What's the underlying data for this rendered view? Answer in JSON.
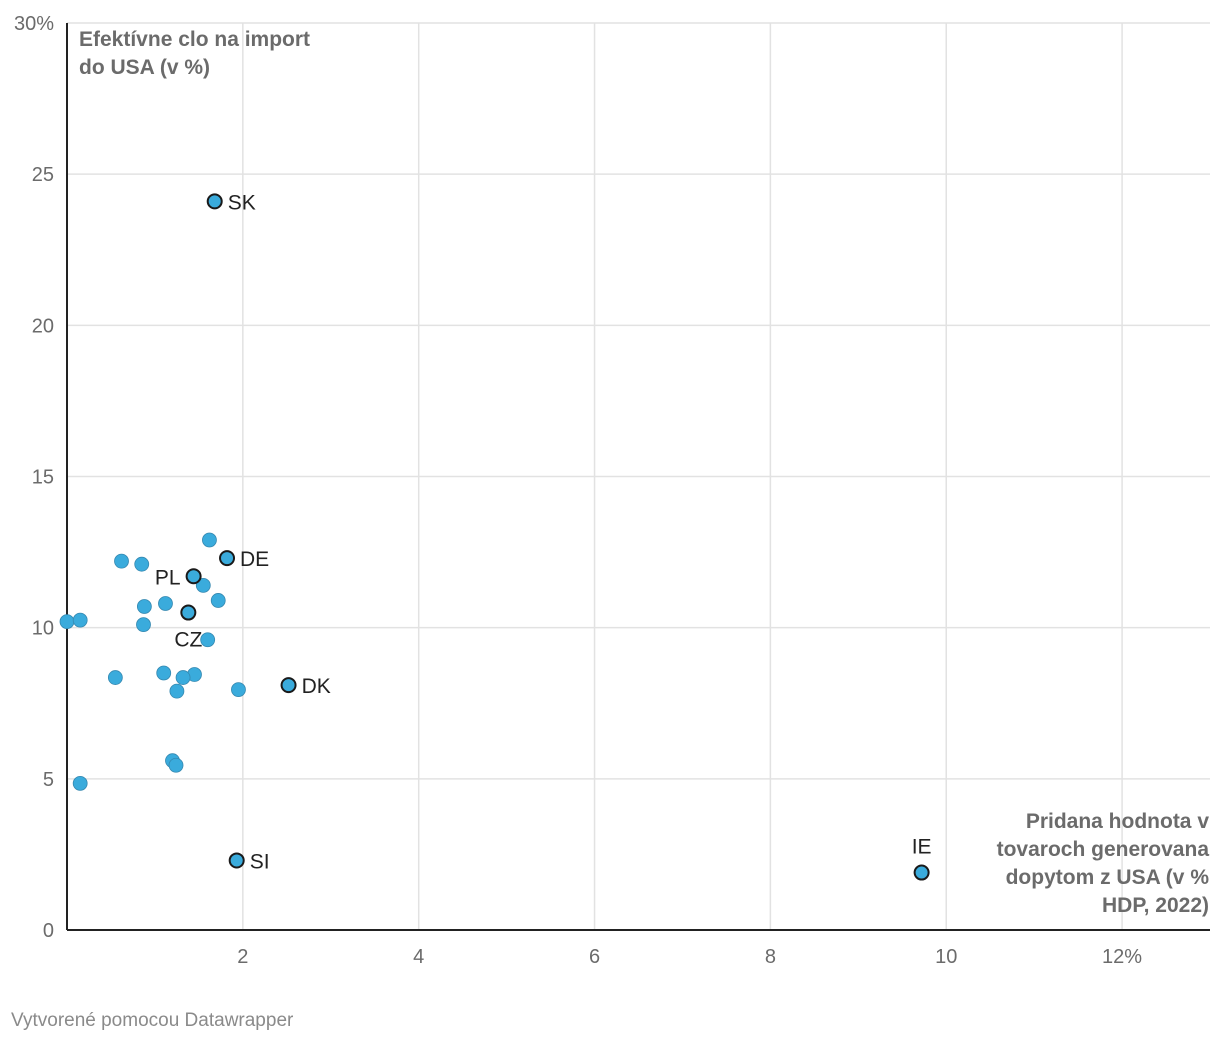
{
  "chart_data": {
    "type": "scatter",
    "ylabel": "Efektívne clo na import do USA (v %)",
    "xlabel": "Pridana hodnota v tovaroch generovana dopytom z USA (v % HDP, 2022)",
    "xlim": [
      0,
      13
    ],
    "ylim": [
      0,
      30
    ],
    "x_ticks": [
      {
        "value": 2,
        "label": "2"
      },
      {
        "value": 4,
        "label": "4"
      },
      {
        "value": 6,
        "label": "6"
      },
      {
        "value": 8,
        "label": "8"
      },
      {
        "value": 10,
        "label": "10"
      },
      {
        "value": 12,
        "label": "12%"
      }
    ],
    "y_ticks": [
      {
        "value": 0,
        "label": "0"
      },
      {
        "value": 5,
        "label": "5"
      },
      {
        "value": 10,
        "label": "10"
      },
      {
        "value": 15,
        "label": "15"
      },
      {
        "value": 20,
        "label": "20"
      },
      {
        "value": 25,
        "label": "25"
      },
      {
        "value": 30,
        "label": "30%"
      }
    ],
    "points": [
      {
        "x": 1.68,
        "y": 24.1,
        "label": "SK",
        "highlight": true,
        "label_pos": "right"
      },
      {
        "x": 1.82,
        "y": 12.3,
        "label": "DE",
        "highlight": true,
        "label_pos": "right"
      },
      {
        "x": 1.44,
        "y": 11.7,
        "label": "PL",
        "highlight": true,
        "label_pos": "left"
      },
      {
        "x": 1.38,
        "y": 10.5,
        "label": "CZ",
        "highlight": true,
        "label_pos": "below-left"
      },
      {
        "x": 2.52,
        "y": 8.1,
        "label": "DK",
        "highlight": true,
        "label_pos": "right"
      },
      {
        "x": 1.93,
        "y": 2.3,
        "label": "SI",
        "highlight": true,
        "label_pos": "right"
      },
      {
        "x": 9.72,
        "y": 1.9,
        "label": "IE",
        "highlight": true,
        "label_pos": "above"
      },
      {
        "x": 1.62,
        "y": 12.9
      },
      {
        "x": 0.62,
        "y": 12.2
      },
      {
        "x": 0.85,
        "y": 12.1
      },
      {
        "x": 1.55,
        "y": 11.4
      },
      {
        "x": 1.72,
        "y": 10.9
      },
      {
        "x": 1.12,
        "y": 10.8
      },
      {
        "x": 0.88,
        "y": 10.7
      },
      {
        "x": 0.0,
        "y": 10.2
      },
      {
        "x": 0.15,
        "y": 10.25
      },
      {
        "x": 0.87,
        "y": 10.1
      },
      {
        "x": 1.6,
        "y": 9.6
      },
      {
        "x": 1.1,
        "y": 8.5
      },
      {
        "x": 1.45,
        "y": 8.45
      },
      {
        "x": 1.32,
        "y": 8.35
      },
      {
        "x": 0.55,
        "y": 8.35
      },
      {
        "x": 1.25,
        "y": 7.9
      },
      {
        "x": 1.95,
        "y": 7.95
      },
      {
        "x": 1.2,
        "y": 5.6
      },
      {
        "x": 1.24,
        "y": 5.45
      },
      {
        "x": 0.15,
        "y": 4.85
      }
    ]
  },
  "colors": {
    "point_fill": "#3aabdc",
    "point_stroke_default": "#3588b0",
    "point_stroke_highlight": "#1a1a1a",
    "grid": "#e2e2e2",
    "axis": "#222222"
  },
  "footer": "Vytvorené pomocou Datawrapper"
}
